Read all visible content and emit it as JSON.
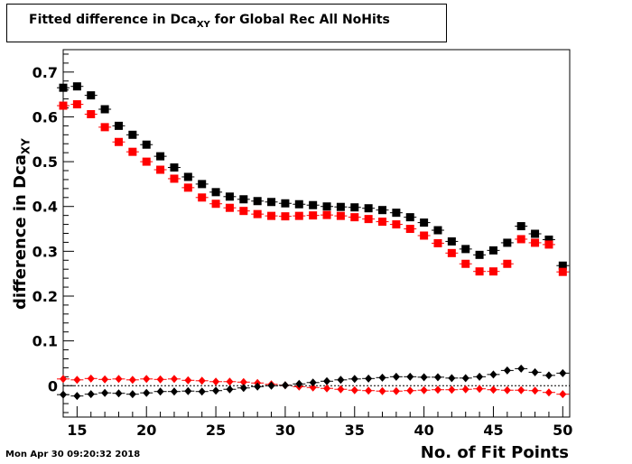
{
  "chart_data": {
    "type": "scatter",
    "title_prefix": "Fitted difference in Dca",
    "title_sub": "XY",
    "title_suffix": " for Global Rec All NoHits",
    "xlabel": "No. of Fit Points",
    "ylabel_prefix": "difference in Dca",
    "ylabel_sub": "XY",
    "xlim": [
      14,
      50.5
    ],
    "ylim": [
      -0.07,
      0.75
    ],
    "x_ticks": [
      15,
      20,
      25,
      30,
      35,
      40,
      45,
      50
    ],
    "y_ticks": [
      0,
      0.1,
      0.2,
      0.3,
      0.4,
      0.5,
      0.6,
      0.7
    ],
    "y_tick_labels": [
      "0",
      "0.1",
      "0.2",
      "0.3",
      "0.4",
      "0.5",
      "0.6",
      "0.7"
    ],
    "x": [
      14,
      15,
      16,
      17,
      18,
      19,
      20,
      21,
      22,
      23,
      24,
      25,
      26,
      27,
      28,
      29,
      30,
      31,
      32,
      33,
      34,
      35,
      36,
      37,
      38,
      39,
      40,
      41,
      42,
      43,
      44,
      45,
      46,
      47,
      48,
      49,
      50
    ],
    "series": [
      {
        "marker": "square",
        "color": "#000000",
        "values": [
          0.665,
          0.668,
          0.648,
          0.617,
          0.58,
          0.56,
          0.538,
          0.512,
          0.487,
          0.466,
          0.45,
          0.432,
          0.422,
          0.416,
          0.412,
          0.41,
          0.407,
          0.405,
          0.403,
          0.4,
          0.399,
          0.398,
          0.396,
          0.392,
          0.386,
          0.376,
          0.364,
          0.347,
          0.322,
          0.305,
          0.292,
          0.302,
          0.319,
          0.356,
          0.339,
          0.326,
          0.268
        ]
      },
      {
        "marker": "square",
        "color": "#ff0000",
        "values": [
          0.625,
          0.628,
          0.606,
          0.577,
          0.544,
          0.522,
          0.5,
          0.482,
          0.462,
          0.442,
          0.42,
          0.406,
          0.397,
          0.39,
          0.383,
          0.379,
          0.378,
          0.379,
          0.38,
          0.381,
          0.379,
          0.376,
          0.372,
          0.366,
          0.36,
          0.35,
          0.335,
          0.318,
          0.296,
          0.272,
          0.255,
          0.255,
          0.272,
          0.327,
          0.319,
          0.315,
          0.254
        ]
      },
      {
        "marker": "diamond",
        "color": "#ff0000",
        "values": [
          0.015,
          0.013,
          0.016,
          0.014,
          0.015,
          0.013,
          0.015,
          0.014,
          0.015,
          0.012,
          0.011,
          0.009,
          0.009,
          0.008,
          0.006,
          0.003,
          0.001,
          -0.002,
          -0.004,
          -0.006,
          -0.008,
          -0.01,
          -0.011,
          -0.012,
          -0.012,
          -0.011,
          -0.01,
          -0.009,
          -0.009,
          -0.008,
          -0.007,
          -0.009,
          -0.01,
          -0.01,
          -0.011,
          -0.015,
          -0.019
        ]
      },
      {
        "marker": "diamond",
        "color": "#000000",
        "values": [
          -0.02,
          -0.023,
          -0.019,
          -0.016,
          -0.017,
          -0.019,
          -0.016,
          -0.013,
          -0.013,
          -0.012,
          -0.013,
          -0.011,
          -0.008,
          -0.005,
          -0.002,
          0.0,
          0.001,
          0.004,
          0.007,
          0.01,
          0.013,
          0.015,
          0.016,
          0.018,
          0.02,
          0.02,
          0.019,
          0.019,
          0.017,
          0.017,
          0.02,
          0.025,
          0.034,
          0.038,
          0.03,
          0.023,
          0.028
        ]
      }
    ]
  },
  "timestamp": "Mon Apr 30 09:20:32 2018"
}
